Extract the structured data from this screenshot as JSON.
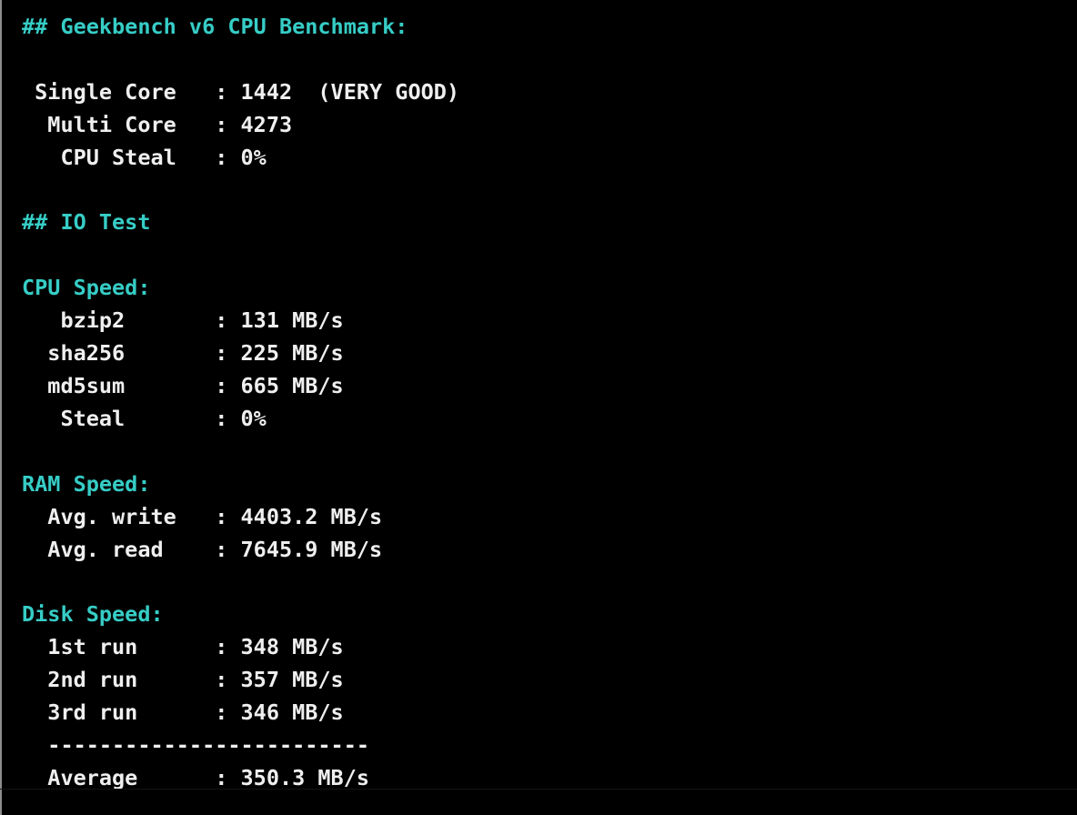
{
  "colors": {
    "background": "#000000",
    "header_text": "#36cdc6",
    "body_text": "#efefef",
    "edge": "#a6a6a6"
  },
  "terminal": {
    "lines": [
      {
        "kind": "header",
        "text": "## Geekbench v6 CPU Benchmark:"
      },
      {
        "kind": "blank",
        "text": ""
      },
      {
        "kind": "body",
        "text": " Single Core   : 1442  (VERY GOOD)"
      },
      {
        "kind": "body",
        "text": "  Multi Core   : 4273"
      },
      {
        "kind": "body",
        "text": "   CPU Steal   : 0%"
      },
      {
        "kind": "blank",
        "text": ""
      },
      {
        "kind": "header",
        "text": "## IO Test"
      },
      {
        "kind": "blank",
        "text": ""
      },
      {
        "kind": "header",
        "text": "CPU Speed:"
      },
      {
        "kind": "body",
        "text": "   bzip2       : 131 MB/s"
      },
      {
        "kind": "body",
        "text": "  sha256       : 225 MB/s"
      },
      {
        "kind": "body",
        "text": "  md5sum       : 665 MB/s"
      },
      {
        "kind": "body",
        "text": "   Steal       : 0%"
      },
      {
        "kind": "blank",
        "text": ""
      },
      {
        "kind": "header",
        "text": "RAM Speed:"
      },
      {
        "kind": "body",
        "text": "  Avg. write   : 4403.2 MB/s"
      },
      {
        "kind": "body",
        "text": "  Avg. read    : 7645.9 MB/s"
      },
      {
        "kind": "blank",
        "text": ""
      },
      {
        "kind": "header",
        "text": "Disk Speed:"
      },
      {
        "kind": "body",
        "text": "  1st run      : 348 MB/s"
      },
      {
        "kind": "body",
        "text": "  2nd run      : 357 MB/s"
      },
      {
        "kind": "body",
        "text": "  3rd run      : 346 MB/s"
      },
      {
        "kind": "body",
        "text": "  -------------------------"
      },
      {
        "kind": "body",
        "text": "  Average      : 350.3 MB/s"
      }
    ]
  },
  "benchmark": {
    "geekbench_v6": {
      "single_core": "1442",
      "single_core_rating": "(VERY GOOD)",
      "multi_core": "4273",
      "cpu_steal": "0%"
    },
    "io_test": {
      "cpu_speed": {
        "bzip2": "131 MB/s",
        "sha256": "225 MB/s",
        "md5sum": "665 MB/s",
        "steal": "0%"
      },
      "ram_speed": {
        "avg_write": "4403.2 MB/s",
        "avg_read": "7645.9 MB/s"
      },
      "disk_speed": {
        "run_1": "348 MB/s",
        "run_2": "357 MB/s",
        "run_3": "346 MB/s",
        "average": "350.3 MB/s"
      }
    }
  }
}
